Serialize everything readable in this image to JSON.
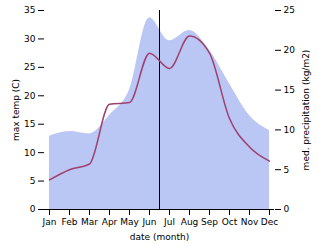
{
  "chart_data": {
    "type": "line",
    "x_label": "date (month)",
    "y_label": "max temp (C)",
    "y2_label": "med. precipitation (kg/m2)",
    "categories": [
      "Jan",
      "Feb",
      "Mar",
      "Apr",
      "May",
      "Jun",
      "Jul",
      "Aug",
      "Sep",
      "Oct",
      "Nov",
      "Dec"
    ],
    "series": [
      {
        "name": "med. precipitation (kg/m2)",
        "type": "area",
        "axis": "y2",
        "color": "#b3c0f2",
        "values": [
          9.2,
          9.8,
          9.5,
          11.8,
          15.0,
          24.1,
          21.2,
          22.5,
          20.0,
          15.8,
          11.8,
          9.9
        ]
      },
      {
        "name": "max temp (C)",
        "type": "line",
        "axis": "y",
        "color": "#a0406e",
        "values": [
          5.2,
          7.0,
          8.0,
          18.5,
          18.8,
          27.5,
          24.8,
          30.5,
          27.5,
          16.0,
          11.0,
          8.5
        ]
      }
    ],
    "ylim": [
      0,
      35
    ],
    "yticks": [
      0,
      5,
      10,
      15,
      20,
      25,
      30,
      35
    ],
    "y2lim": [
      0,
      25
    ],
    "y2ticks": [
      0,
      5,
      10,
      15,
      20,
      25
    ],
    "grid": false
  }
}
